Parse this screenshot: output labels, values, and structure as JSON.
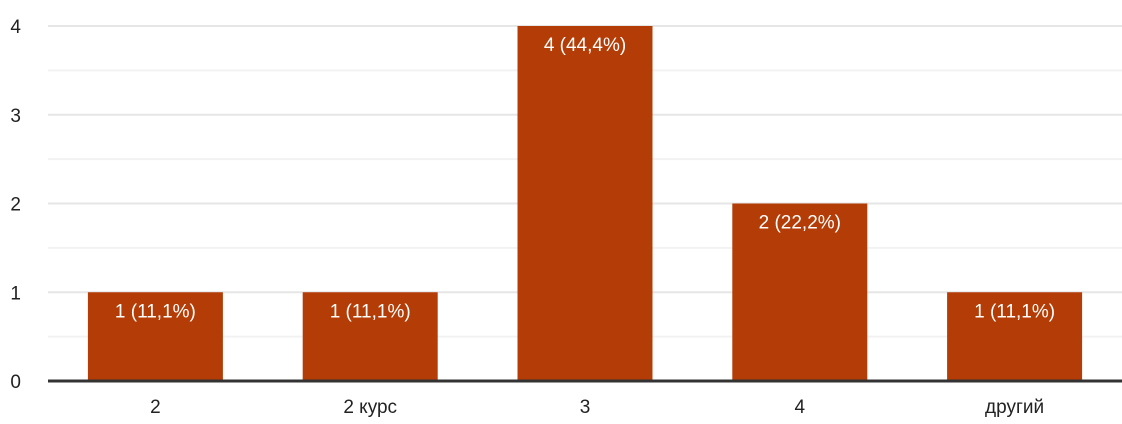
{
  "chart_data": {
    "type": "bar",
    "categories": [
      "2",
      "2 курс",
      "3",
      "4",
      "другий"
    ],
    "values": [
      1,
      1,
      4,
      2,
      1
    ],
    "data_labels": [
      "1 (11,1%)",
      "1 (11,1%)",
      "4 (44,4%)",
      "2 (22,2%)",
      "1 (11,1%)"
    ],
    "y_ticks": [
      "0",
      "1",
      "2",
      "3",
      "4"
    ],
    "ylim": [
      0,
      4
    ],
    "grid": true,
    "legend": "none",
    "colors": {
      "bar": "#b43c06",
      "grid_major": "#e6e6e6",
      "grid_minor": "#f2f2f2",
      "axis": "#333333",
      "tick_text": "#222222",
      "label_text": "#ffffff"
    }
  }
}
